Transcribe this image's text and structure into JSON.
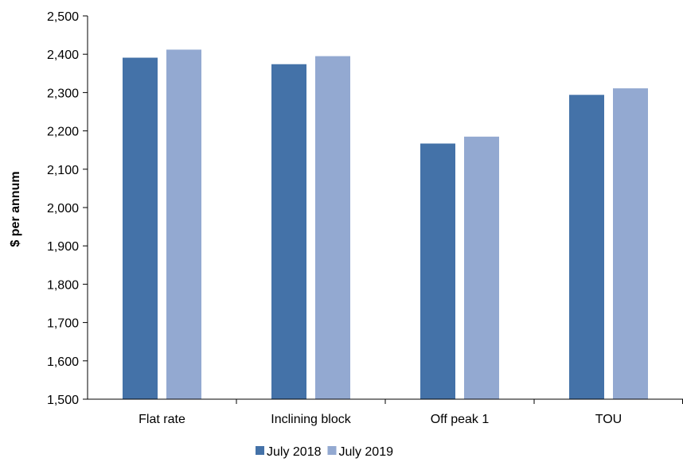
{
  "chart_data": {
    "type": "bar",
    "title": "",
    "xlabel": "",
    "ylabel": "$ per annum",
    "ylim": [
      1500,
      2500
    ],
    "ytick_step": 100,
    "grid": false,
    "legend_position": "bottom",
    "categories": [
      "Flat rate",
      "Inclining block",
      "Off peak 1",
      "TOU"
    ],
    "series": [
      {
        "name": "July 2018",
        "color": "#4472a8",
        "values": [
          2391,
          2374,
          2167,
          2294
        ]
      },
      {
        "name": "July 2019",
        "color": "#93a9d1",
        "values": [
          2412,
          2395,
          2185,
          2311
        ]
      }
    ]
  }
}
